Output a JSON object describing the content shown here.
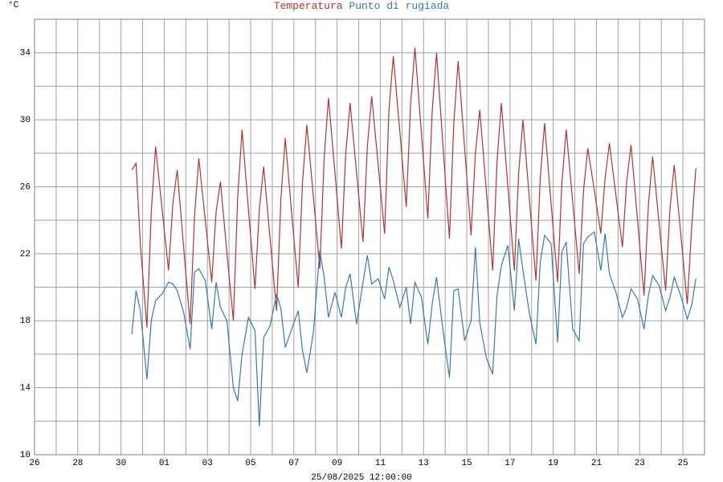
{
  "chart_data": {
    "type": "line",
    "y_unit": "°C",
    "x_label": "25/08/2025 12:00:00",
    "x": [
      4.5,
      4.7,
      4.9,
      5.2,
      5.4,
      5.6,
      5.9,
      6.2,
      6.4,
      6.6,
      6.9,
      7.2,
      7.4,
      7.6,
      7.9,
      8.2,
      8.4,
      8.6,
      8.9,
      9.2,
      9.4,
      9.6,
      9.9,
      10.2,
      10.4,
      10.6,
      10.9,
      11.2,
      11.4,
      11.6,
      11.9,
      12.2,
      12.4,
      12.6,
      12.9,
      13.2,
      13.4,
      13.6,
      13.9,
      14.2,
      14.4,
      14.6,
      14.9,
      15.2,
      15.4,
      15.6,
      15.9,
      16.2,
      16.4,
      16.6,
      16.9,
      17.2,
      17.4,
      17.6,
      17.9,
      18.2,
      18.4,
      18.6,
      18.9,
      19.2,
      19.4,
      19.6,
      19.9,
      20.2,
      20.4,
      20.6,
      20.9,
      21.2,
      21.4,
      21.6,
      21.9,
      22.2,
      22.4,
      22.6,
      22.9,
      23.2,
      23.4,
      23.6,
      23.9,
      24.2,
      24.4,
      24.6,
      24.9,
      25.2,
      25.4,
      25.6,
      25.9,
      26.2,
      26.4,
      26.6,
      26.9,
      27.2,
      27.4,
      27.6,
      27.9,
      28.2,
      28.4,
      28.6,
      28.9,
      29.2,
      29.4,
      29.6,
      29.9,
      30.2,
      30.4,
      30.6
    ],
    "series": [
      {
        "name": "Temperatura",
        "color": "#b03434",
        "values": [
          27.0,
          27.4,
          22.5,
          17.6,
          24.5,
          28.4,
          24.7,
          21.0,
          25.0,
          27.0,
          22.4,
          17.8,
          24.2,
          27.7,
          24.0,
          20.3,
          24.5,
          26.3,
          22.1,
          18.0,
          25.4,
          29.4,
          24.6,
          19.9,
          24.6,
          27.2,
          22.9,
          18.6,
          25.3,
          28.9,
          24.4,
          20.0,
          26.3,
          29.7,
          25.4,
          21.1,
          27.7,
          31.3,
          26.8,
          22.3,
          28.0,
          31.0,
          26.8,
          22.7,
          28.4,
          31.4,
          27.3,
          23.2,
          30.6,
          33.8,
          29.3,
          24.8,
          30.9,
          34.3,
          29.2,
          24.1,
          30.5,
          34.0,
          28.4,
          22.9,
          29.8,
          33.5,
          28.3,
          23.1,
          28.0,
          30.6,
          25.8,
          21.0,
          27.5,
          31.0,
          26.0,
          21.0,
          26.8,
          30.0,
          25.2,
          20.4,
          26.5,
          29.8,
          25.0,
          20.3,
          26.2,
          29.4,
          25.1,
          20.8,
          25.7,
          28.3,
          25.8,
          23.2,
          26.5,
          28.6,
          25.5,
          22.4,
          26.3,
          28.5,
          24.0,
          19.5,
          24.9,
          27.8,
          23.8,
          19.8,
          24.7,
          27.3,
          23.2,
          19.0,
          23.5,
          27.1
        ]
      },
      {
        "name": "Punto di rugiada",
        "color": "#3a78a8",
        "values": [
          17.2,
          19.8,
          18.6,
          14.5,
          18.0,
          19.2,
          19.6,
          20.3,
          20.2,
          19.8,
          18.5,
          16.3,
          20.9,
          21.1,
          20.4,
          17.5,
          20.3,
          18.8,
          18.0,
          14.0,
          13.2,
          16.0,
          18.2,
          17.4,
          11.7,
          17.0,
          17.7,
          19.6,
          18.7,
          16.4,
          17.5,
          18.6,
          16.2,
          14.9,
          17.3,
          22.2,
          20.6,
          18.2,
          19.7,
          18.2,
          20.0,
          20.8,
          17.8,
          20.3,
          21.9,
          20.2,
          20.5,
          19.3,
          21.2,
          20.4,
          18.8,
          20.0,
          17.8,
          20.3,
          19.4,
          16.6,
          19.0,
          20.6,
          17.4,
          14.6,
          19.8,
          19.9,
          16.8,
          18.0,
          22.4,
          17.9,
          15.8,
          14.8,
          19.5,
          21.3,
          22.5,
          18.6,
          22.9,
          21.0,
          18.4,
          16.6,
          21.5,
          23.1,
          22.6,
          16.7,
          22.1,
          22.7,
          17.5,
          16.8,
          22.6,
          23.0,
          23.3,
          21.0,
          23.2,
          20.8,
          19.7,
          18.2,
          18.8,
          19.9,
          19.3,
          17.5,
          19.5,
          20.7,
          20.1,
          18.6,
          19.4,
          20.6,
          19.5,
          18.1,
          18.9,
          20.5
        ]
      }
    ],
    "xlim": [
      0,
      31
    ],
    "xticks": [
      {
        "value": 0,
        "label": "26"
      },
      {
        "value": 2,
        "label": "28"
      },
      {
        "value": 4,
        "label": "30"
      },
      {
        "value": 6,
        "label": "01"
      },
      {
        "value": 8,
        "label": "03"
      },
      {
        "value": 10,
        "label": "05"
      },
      {
        "value": 12,
        "label": "07"
      },
      {
        "value": 14,
        "label": "09"
      },
      {
        "value": 16,
        "label": "11"
      },
      {
        "value": 18,
        "label": "13"
      },
      {
        "value": 20,
        "label": "15"
      },
      {
        "value": 22,
        "label": "17"
      },
      {
        "value": 24,
        "label": "19"
      },
      {
        "value": 26,
        "label": "21"
      },
      {
        "value": 28,
        "label": "23"
      },
      {
        "value": 30,
        "label": "25"
      }
    ],
    "xticks_minor": [
      1,
      3,
      5,
      7,
      9,
      11,
      13,
      15,
      17,
      19,
      21,
      23,
      25,
      27,
      29
    ],
    "ylim": [
      10,
      36
    ],
    "yticks": [
      10,
      14,
      18,
      22,
      26,
      30,
      34
    ],
    "yticks_minor": [
      12,
      16,
      20,
      24,
      28,
      32
    ],
    "grid": true
  }
}
